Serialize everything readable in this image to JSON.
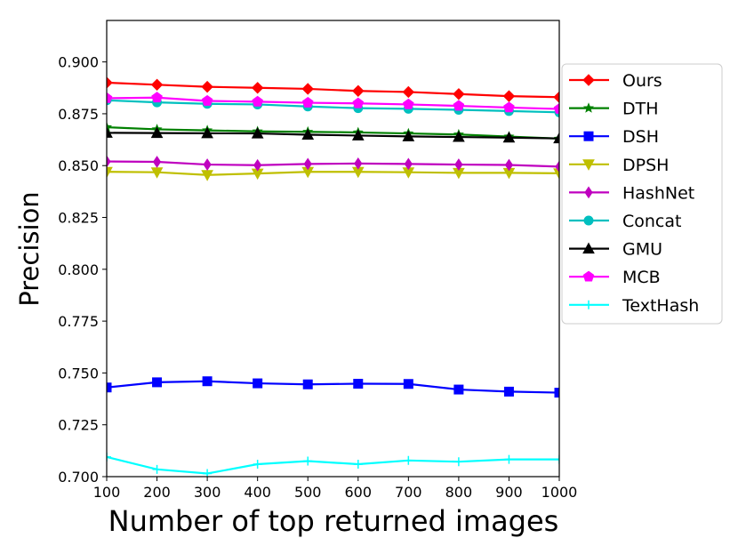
{
  "chart_data": {
    "type": "line",
    "title": "",
    "xlabel": "Number of top returned images",
    "ylabel": "Precision",
    "x": [
      100,
      200,
      300,
      400,
      500,
      600,
      700,
      800,
      900,
      1000
    ],
    "xticks": [
      "100",
      "200",
      "300",
      "400",
      "500",
      "600",
      "700",
      "800",
      "900",
      "1000"
    ],
    "xlim": [
      100,
      1000
    ],
    "yticks": [
      "0.700",
      "0.725",
      "0.750",
      "0.775",
      "0.800",
      "0.825",
      "0.850",
      "0.875",
      "0.900"
    ],
    "ylim": [
      0.7,
      0.92
    ],
    "grid": false,
    "legend_position": "outside-right",
    "series": [
      {
        "name": "Ours",
        "color": "#ff0000",
        "marker": "diamond",
        "values": [
          0.89,
          0.889,
          0.888,
          0.8875,
          0.887,
          0.886,
          0.8855,
          0.8845,
          0.8835,
          0.883
        ]
      },
      {
        "name": "DTH",
        "color": "#008000",
        "marker": "star",
        "values": [
          0.8685,
          0.8675,
          0.867,
          0.8665,
          0.8663,
          0.866,
          0.8655,
          0.865,
          0.864,
          0.863
        ]
      },
      {
        "name": "DSH",
        "color": "#0000ff",
        "marker": "square",
        "values": [
          0.743,
          0.7455,
          0.746,
          0.745,
          0.7445,
          0.7448,
          0.7447,
          0.742,
          0.741,
          0.7405
        ]
      },
      {
        "name": "DPSH",
        "color": "#bfbf00",
        "marker": "triangle-down",
        "values": [
          0.847,
          0.8468,
          0.8455,
          0.8462,
          0.847,
          0.847,
          0.8468,
          0.8465,
          0.8465,
          0.8463
        ]
      },
      {
        "name": "HashNet",
        "color": "#bf00bf",
        "marker": "thin-diamond",
        "values": [
          0.852,
          0.8518,
          0.8505,
          0.8502,
          0.8508,
          0.851,
          0.8508,
          0.8505,
          0.8503,
          0.8495
        ]
      },
      {
        "name": "Concat",
        "color": "#00bfbf",
        "marker": "circle",
        "values": [
          0.8815,
          0.8805,
          0.8798,
          0.8795,
          0.8785,
          0.8777,
          0.8774,
          0.8769,
          0.8763,
          0.8757
        ]
      },
      {
        "name": "GMU",
        "color": "#000000",
        "marker": "triangle-up",
        "values": [
          0.8658,
          0.8657,
          0.8656,
          0.8655,
          0.8649,
          0.8645,
          0.8641,
          0.8638,
          0.8635,
          0.8631
        ]
      },
      {
        "name": "MCB",
        "color": "#ff00ff",
        "marker": "pentagon",
        "values": [
          0.8825,
          0.8828,
          0.8812,
          0.8808,
          0.8803,
          0.88,
          0.8795,
          0.8788,
          0.878,
          0.8773
        ]
      },
      {
        "name": "TextHash",
        "color": "#00ffff",
        "marker": "plus",
        "values": [
          0.7095,
          0.7035,
          0.7015,
          0.706,
          0.7075,
          0.706,
          0.7078,
          0.7072,
          0.7083,
          0.7083
        ]
      }
    ]
  }
}
